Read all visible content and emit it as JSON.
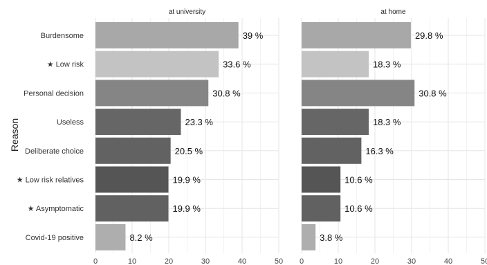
{
  "chart_data": {
    "type": "bar",
    "orientation": "horizontal",
    "ylabel": "Reason",
    "xlabel": "",
    "categories": [
      "Burdensome",
      "Low risk",
      "Personal decision",
      "Useless",
      "Deliberate choice",
      "Low risk relatives",
      "Asymptomatic",
      "Covid-19 positive"
    ],
    "starred": [
      false,
      true,
      false,
      false,
      false,
      true,
      true,
      false
    ],
    "star_glyph": "★",
    "bar_colors": [
      "#a8a8a8",
      "#c3c3c3",
      "#858585",
      "#666666",
      "#626262",
      "#555555",
      "#616161",
      "#aeaeae"
    ],
    "x_ticks": [
      0,
      10,
      20,
      30,
      40,
      50
    ],
    "xlim": [
      0,
      50
    ],
    "value_suffix": " %",
    "grid": true,
    "facets": [
      {
        "title": "at university",
        "values": [
          39,
          33.6,
          30.8,
          23.3,
          20.5,
          19.9,
          19.9,
          8.2
        ]
      },
      {
        "title": "at home",
        "values": [
          29.8,
          18.3,
          30.8,
          18.3,
          16.3,
          10.6,
          10.6,
          3.8
        ]
      }
    ]
  }
}
